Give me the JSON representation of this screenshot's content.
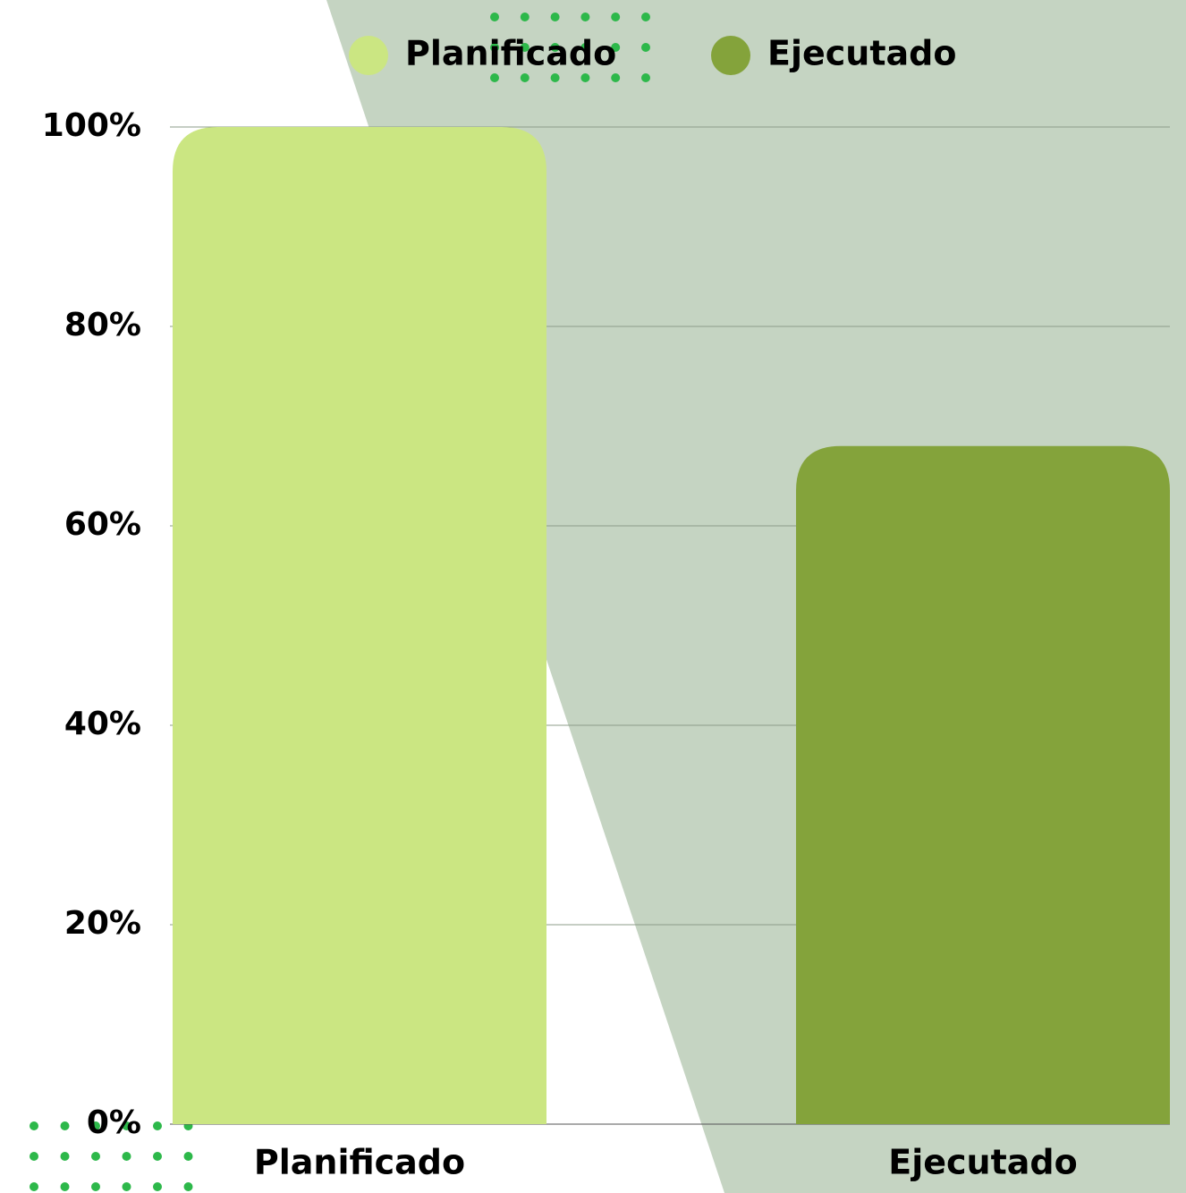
{
  "chart_data": {
    "type": "bar",
    "categories": [
      "Planificado",
      "Ejecutado"
    ],
    "series": [
      {
        "name": "Planificado",
        "color": "#cbe682",
        "values": [
          100,
          null
        ]
      },
      {
        "name": "Ejecutado",
        "color": "#84a33b",
        "values": [
          null,
          68
        ]
      }
    ],
    "ylim": [
      0,
      100
    ],
    "yticks": [
      {
        "value": 0,
        "label": "0%"
      },
      {
        "value": 20,
        "label": "20%"
      },
      {
        "value": 40,
        "label": "40%"
      },
      {
        "value": 60,
        "label": "60%"
      },
      {
        "value": 80,
        "label": "80%"
      },
      {
        "value": 100,
        "label": "100%"
      }
    ],
    "grid": true,
    "legend": "top"
  }
}
